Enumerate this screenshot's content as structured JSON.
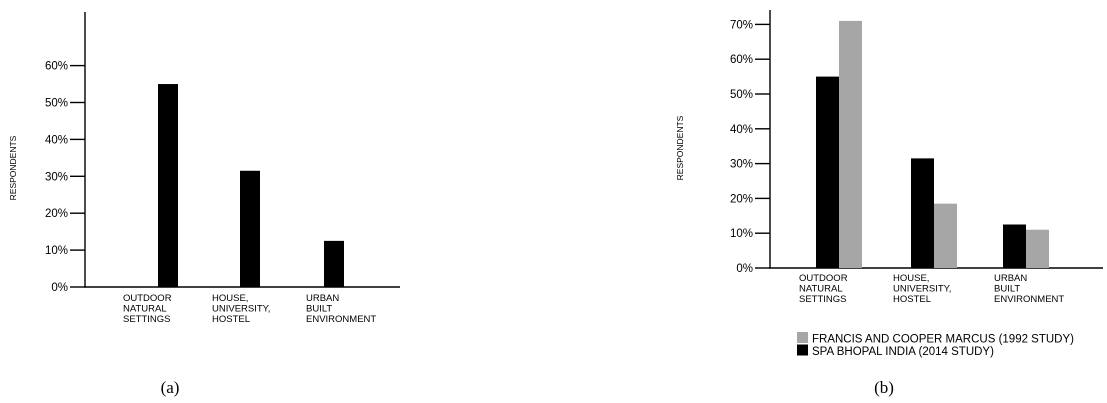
{
  "chart_data": [
    {
      "type": "bar",
      "panel_label": "(a)",
      "ylabel": "RESPONDENTS",
      "yticks": [
        "0%",
        "10%",
        "20%",
        "30%",
        "40%",
        "50%",
        "60%"
      ],
      "ylim": [
        0,
        70
      ],
      "categories": [
        [
          "OUTDOOR",
          "NATURAL",
          "SETTINGS"
        ],
        [
          "HOUSE,",
          "UNIVERSITY,",
          "HOSTEL"
        ],
        [
          "URBAN",
          "BUILT",
          "ENVIRONMENT"
        ]
      ],
      "series": [
        {
          "values": [
            55,
            31.5,
            12.5
          ],
          "color": "#000000"
        }
      ]
    },
    {
      "type": "bar",
      "panel_label": "(b)",
      "ylabel": "RESPONDENTS",
      "yticks": [
        "0%",
        "10%",
        "20%",
        "30%",
        "40%",
        "50%",
        "60%",
        "70%"
      ],
      "ylim": [
        0,
        75
      ],
      "categories": [
        [
          "OUTDOOR",
          "NATURAL",
          "SETTINGS"
        ],
        [
          "HOUSE,",
          "UNIVERSITY,",
          "HOSTEL"
        ],
        [
          "URBAN",
          "BUILT",
          "ENVIRONMENT"
        ]
      ],
      "series": [
        {
          "name": "SPA BHOPAL INDIA (2014 STUDY)",
          "values": [
            55,
            31.5,
            12.5
          ],
          "color": "#000000"
        },
        {
          "name": "FRANCIS AND COOPER MARCUS (1992 STUDY)",
          "values": [
            71,
            18.5,
            11
          ],
          "color": "#a6a6a6"
        }
      ],
      "legend": {
        "position": "bottom",
        "order": [
          "FRANCIS AND COOPER MARCUS (1992 STUDY)",
          "SPA BHOPAL INDIA (2014 STUDY)"
        ]
      }
    }
  ]
}
